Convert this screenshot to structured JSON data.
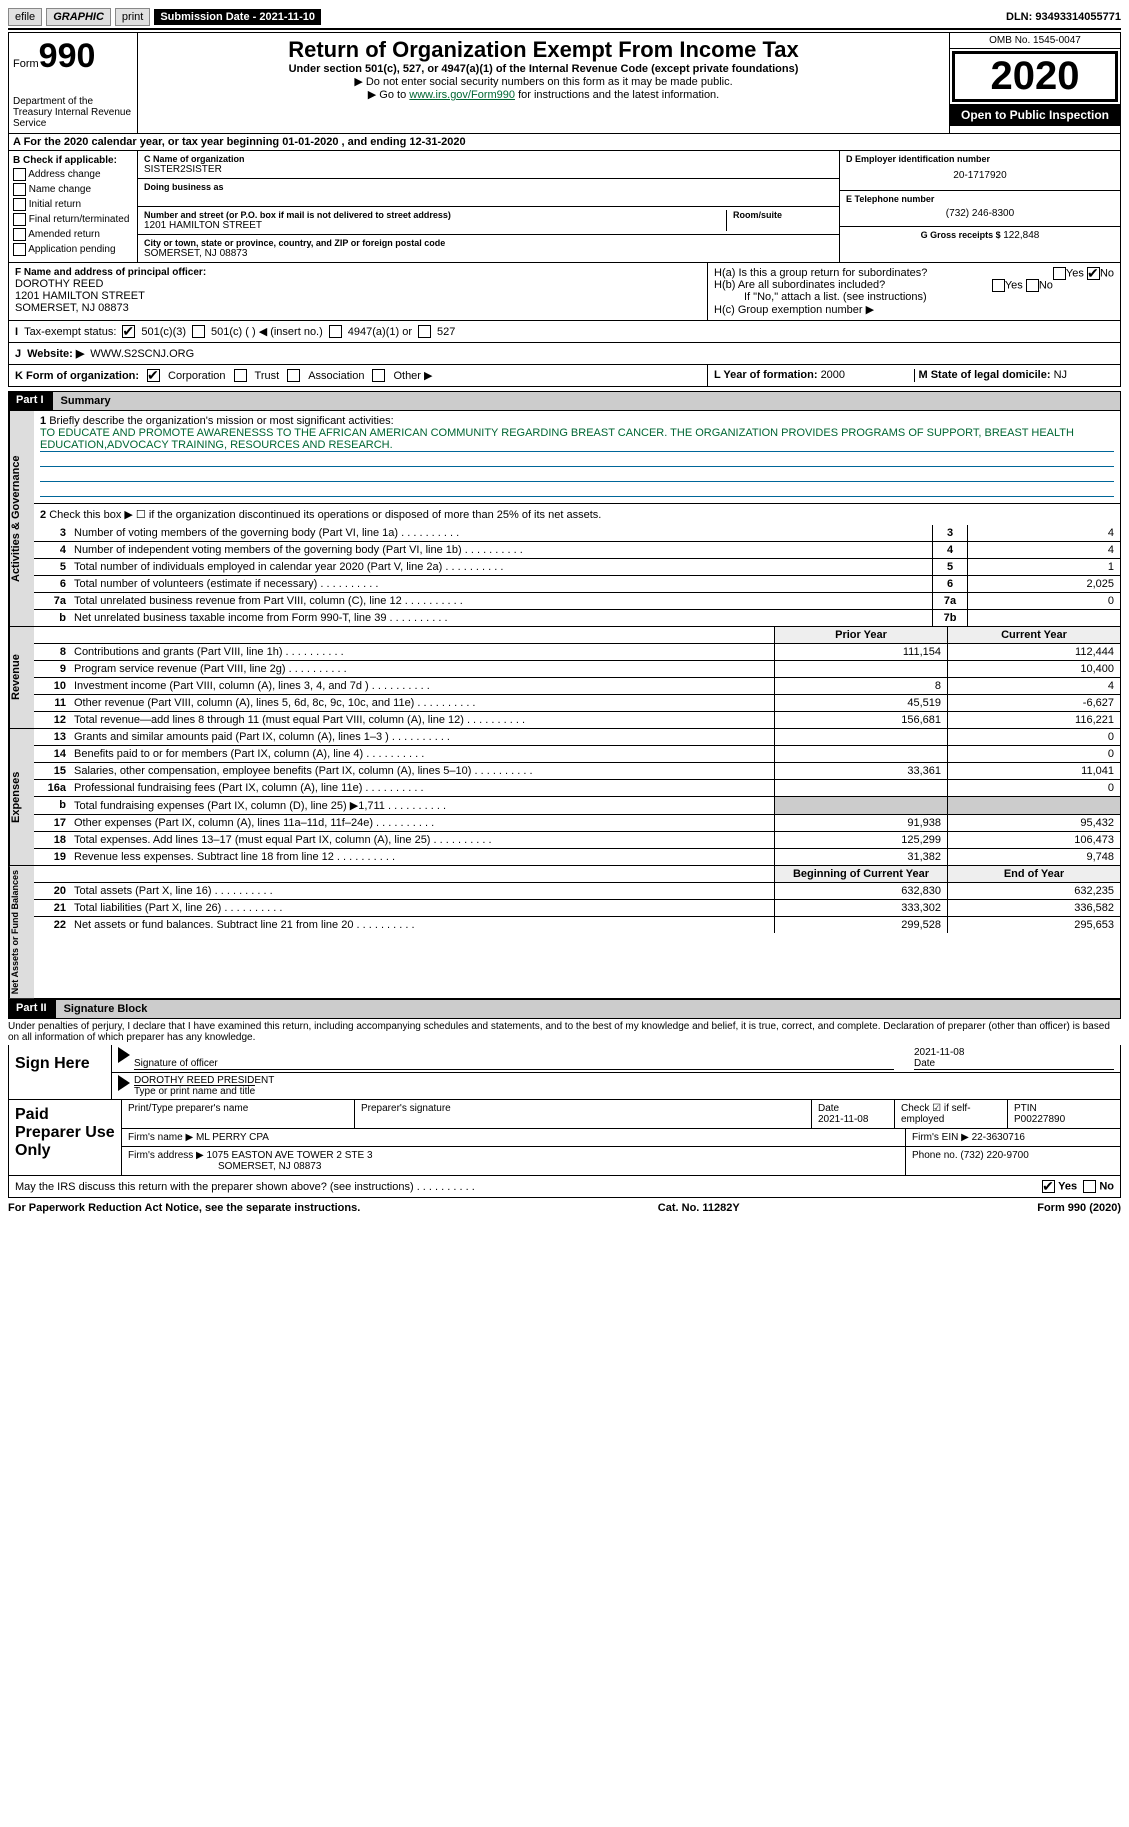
{
  "topbar": {
    "efile": "efile",
    "graphic": "GRAPHIC",
    "print": "print",
    "sub_label": "Submission Date - 2021-11-10",
    "dln": "DLN: 93493314055771"
  },
  "header": {
    "form_prefix": "Form",
    "form_num": "990",
    "dept": "Department of the Treasury\nInternal Revenue Service",
    "title": "Return of Organization Exempt From Income Tax",
    "sub1": "Under section 501(c), 527, or 4947(a)(1) of the Internal Revenue Code (except private foundations)",
    "sub2": "▶ Do not enter social security numbers on this form as it may be made public.",
    "sub3_pre": "▶ Go to ",
    "sub3_link": "www.irs.gov/Form990",
    "sub3_post": " for instructions and the latest information.",
    "omb": "OMB No. 1545-0047",
    "year": "2020",
    "otp": "Open to Public Inspection"
  },
  "row_a": "A For the 2020 calendar year, or tax year beginning 01-01-2020   , and ending 12-31-2020",
  "col_b": {
    "title": "B Check if applicable:",
    "opts": [
      "Address change",
      "Name change",
      "Initial return",
      "Final return/terminated",
      "Amended return",
      "Application pending"
    ]
  },
  "c": {
    "label": "C Name of organization",
    "name": "SISTER2SISTER",
    "dba_label": "Doing business as",
    "addr_label": "Number and street (or P.O. box if mail is not delivered to street address)",
    "addr": "1201 HAMILTON STREET",
    "room_label": "Room/suite",
    "city_label": "City or town, state or province, country, and ZIP or foreign postal code",
    "city": "SOMERSET, NJ  08873"
  },
  "d": {
    "label": "D Employer identification number",
    "value": "20-1717920"
  },
  "e": {
    "label": "E Telephone number",
    "value": "(732) 246-8300"
  },
  "g": {
    "label": "G Gross receipts $ ",
    "value": "122,848"
  },
  "f": {
    "label": "F Name and address of principal officer:",
    "name": "DOROTHY REED",
    "addr1": "1201 HAMILTON STREET",
    "addr2": "SOMERSET, NJ  08873"
  },
  "h": {
    "a": "H(a)  Is this a group return for subordinates?",
    "b": "H(b)  Are all subordinates included?",
    "note": "If \"No,\" attach a list. (see instructions)",
    "c": "H(c)  Group exemption number ▶",
    "yes": "Yes",
    "no": "No"
  },
  "i": {
    "label": "Tax-exempt status:",
    "o1": "501(c)(3)",
    "o2": "501(c) (  ) ◀ (insert no.)",
    "o3": "4947(a)(1) or",
    "o4": "527"
  },
  "j": {
    "label": "Website: ▶",
    "value": "WWW.S2SCNJ.ORG"
  },
  "k": {
    "label": "K Form of organization:",
    "o1": "Corporation",
    "o2": "Trust",
    "o3": "Association",
    "o4": "Other ▶"
  },
  "l": {
    "label": "L Year of formation: ",
    "value": "2000"
  },
  "m": {
    "label": "M State of legal domicile: ",
    "value": "NJ"
  },
  "part1": {
    "hdr": "Part I",
    "title": "Summary",
    "q1": "Briefly describe the organization's mission or most significant activities:",
    "mission": "TO EDUCATE AND PROMOTE AWARENESSS TO THE AFRICAN AMERICAN COMMUNITY REGARDING BREAST CANCER. THE ORGANIZATION PROVIDES PROGRAMS OF SUPPORT, BREAST HEALTH EDUCATION,ADVOCACY TRAINING, RESOURCES AND RESEARCH.",
    "q2": "Check this box ▶ ☐ if the organization discontinued its operations or disposed of more than 25% of its net assets.",
    "side1": "Activities & Governance",
    "side2": "Revenue",
    "side3": "Expenses",
    "side4": "Net Assets or Fund Balances",
    "lines_gov": [
      {
        "n": "3",
        "d": "Number of voting members of the governing body (Part VI, line 1a)",
        "bn": "3",
        "v": "4"
      },
      {
        "n": "4",
        "d": "Number of independent voting members of the governing body (Part VI, line 1b)",
        "bn": "4",
        "v": "4"
      },
      {
        "n": "5",
        "d": "Total number of individuals employed in calendar year 2020 (Part V, line 2a)",
        "bn": "5",
        "v": "1"
      },
      {
        "n": "6",
        "d": "Total number of volunteers (estimate if necessary)",
        "bn": "6",
        "v": "2,025"
      },
      {
        "n": "7a",
        "d": "Total unrelated business revenue from Part VIII, column (C), line 12",
        "bn": "7a",
        "v": "0"
      },
      {
        "n": "b",
        "d": "Net unrelated business taxable income from Form 990-T, line 39",
        "bn": "7b",
        "v": ""
      }
    ],
    "hdr_py": "Prior Year",
    "hdr_cy": "Current Year",
    "lines_rev": [
      {
        "n": "8",
        "d": "Contributions and grants (Part VIII, line 1h)",
        "py": "111,154",
        "cy": "112,444"
      },
      {
        "n": "9",
        "d": "Program service revenue (Part VIII, line 2g)",
        "py": "",
        "cy": "10,400"
      },
      {
        "n": "10",
        "d": "Investment income (Part VIII, column (A), lines 3, 4, and 7d )",
        "py": "8",
        "cy": "4"
      },
      {
        "n": "11",
        "d": "Other revenue (Part VIII, column (A), lines 5, 6d, 8c, 9c, 10c, and 11e)",
        "py": "45,519",
        "cy": "-6,627"
      },
      {
        "n": "12",
        "d": "Total revenue—add lines 8 through 11 (must equal Part VIII, column (A), line 12)",
        "py": "156,681",
        "cy": "116,221"
      }
    ],
    "lines_exp": [
      {
        "n": "13",
        "d": "Grants and similar amounts paid (Part IX, column (A), lines 1–3 )",
        "py": "",
        "cy": "0"
      },
      {
        "n": "14",
        "d": "Benefits paid to or for members (Part IX, column (A), line 4)",
        "py": "",
        "cy": "0"
      },
      {
        "n": "15",
        "d": "Salaries, other compensation, employee benefits (Part IX, column (A), lines 5–10)",
        "py": "33,361",
        "cy": "11,041"
      },
      {
        "n": "16a",
        "d": "Professional fundraising fees (Part IX, column (A), line 11e)",
        "py": "",
        "cy": "0"
      },
      {
        "n": "b",
        "d": "Total fundraising expenses (Part IX, column (D), line 25) ▶1,711",
        "py": "shaded",
        "cy": "shaded"
      },
      {
        "n": "17",
        "d": "Other expenses (Part IX, column (A), lines 11a–11d, 11f–24e)",
        "py": "91,938",
        "cy": "95,432"
      },
      {
        "n": "18",
        "d": "Total expenses. Add lines 13–17 (must equal Part IX, column (A), line 25)",
        "py": "125,299",
        "cy": "106,473"
      },
      {
        "n": "19",
        "d": "Revenue less expenses. Subtract line 18 from line 12",
        "py": "31,382",
        "cy": "9,748"
      }
    ],
    "hdr_bcy": "Beginning of Current Year",
    "hdr_eoy": "End of Year",
    "lines_net": [
      {
        "n": "20",
        "d": "Total assets (Part X, line 16)",
        "py": "632,830",
        "cy": "632,235"
      },
      {
        "n": "21",
        "d": "Total liabilities (Part X, line 26)",
        "py": "333,302",
        "cy": "336,582"
      },
      {
        "n": "22",
        "d": "Net assets or fund balances. Subtract line 21 from line 20",
        "py": "299,528",
        "cy": "295,653"
      }
    ]
  },
  "part2": {
    "hdr": "Part II",
    "title": "Signature Block",
    "decl": "Under penalties of perjury, I declare that I have examined this return, including accompanying schedules and statements, and to the best of my knowledge and belief, it is true, correct, and complete. Declaration of preparer (other than officer) is based on all information of which preparer has any knowledge.",
    "sign_here": "Sign Here",
    "sig_officer": "Signature of officer",
    "sig_date": "2021-11-08",
    "date_lbl": "Date",
    "officer_name": "DOROTHY REED PRESIDENT",
    "officer_lbl": "Type or print name and title",
    "paid": "Paid Preparer Use Only",
    "p_name_lbl": "Print/Type preparer's name",
    "p_sig_lbl": "Preparer's signature",
    "p_date_lbl": "Date",
    "p_date": "2021-11-08",
    "p_check_lbl": "Check ☑ if self-employed",
    "p_ptin_lbl": "PTIN",
    "p_ptin": "P00227890",
    "firm_name_lbl": "Firm's name   ▶",
    "firm_name": "ML PERRY CPA",
    "firm_ein_lbl": "Firm's EIN ▶",
    "firm_ein": "22-3630716",
    "firm_addr_lbl": "Firm's address ▶",
    "firm_addr1": "1075 EASTON AVE TOWER 2 STE 3",
    "firm_addr2": "SOMERSET, NJ  08873",
    "phone_lbl": "Phone no. ",
    "phone": "(732) 220-9700",
    "may_irs": "May the IRS discuss this return with the preparer shown above? (see instructions)",
    "yes": "Yes",
    "no": "No"
  },
  "footer": {
    "left": "For Paperwork Reduction Act Notice, see the separate instructions.",
    "mid": "Cat. No. 11282Y",
    "right": "Form 990 (2020)"
  }
}
